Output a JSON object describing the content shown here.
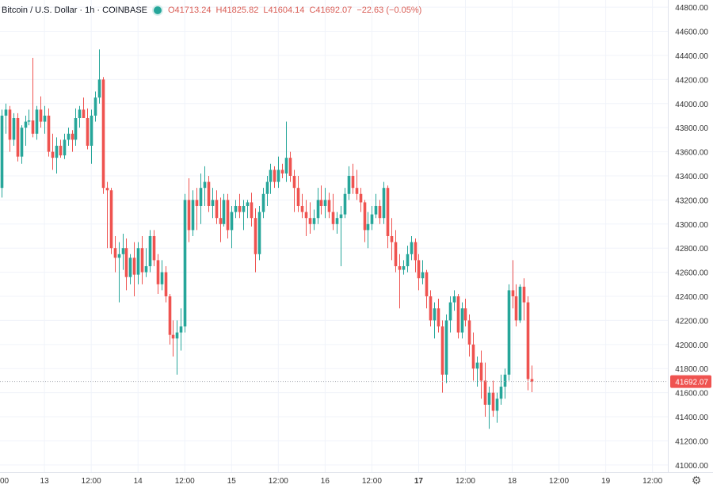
{
  "legend": {
    "symbol": "Bitcoin / U.S. Dollar · 1h · COINBASE",
    "open": "O41713.24",
    "high": "H41825.82",
    "low": "L41604.14",
    "close": "C41692.07",
    "change": "−22.63 (−0.05%)"
  },
  "settings_icon": "gear-icon",
  "colors": {
    "up": "#26a69a",
    "down": "#ef5350",
    "price_label_bg": "#ef5350",
    "grid": "#f0f3fa"
  },
  "chart_data": {
    "type": "candlestick",
    "title": "Bitcoin / U.S. Dollar · 1h · COINBASE",
    "last_price": 41692.07,
    "last_price_label": "41692.07",
    "ylim": [
      40940,
      44860
    ],
    "grid": true,
    "y_ticks": [
      41000,
      41200,
      41400,
      41600,
      41800,
      42000,
      42200,
      42400,
      42600,
      42800,
      43000,
      43200,
      43400,
      43600,
      43800,
      44000,
      44200,
      44400,
      44600,
      44800
    ],
    "y_tick_labels": [
      "41000.00",
      "41200.00",
      "41400.00",
      "41600.00",
      "41800.00",
      "42000.00",
      "42200.00",
      "42400.00",
      "42600.00",
      "42800.00",
      "43000.00",
      "43200.00",
      "43400.00",
      "43600.00",
      "43800.00",
      "44000.00",
      "44200.00",
      "44400.00",
      "44600.00",
      "44800.00"
    ],
    "x_ticks": [
      {
        "label": "00",
        "index": -1
      },
      {
        "label": "13",
        "index": 11
      },
      {
        "label": "12:00",
        "index": 23
      },
      {
        "label": "14",
        "index": 35
      },
      {
        "label": "12:00",
        "index": 47
      },
      {
        "label": "15",
        "index": 59
      },
      {
        "label": "12:00",
        "index": 71
      },
      {
        "label": "16",
        "index": 83
      },
      {
        "label": "12:00",
        "index": 95
      },
      {
        "label": "17",
        "index": 107
      },
      {
        "label": "12:00",
        "index": 119
      },
      {
        "label": "18",
        "index": 131
      },
      {
        "label": "12:00",
        "index": 143
      },
      {
        "label": "19",
        "index": 155
      },
      {
        "label": "12:00",
        "index": 167
      }
    ],
    "candles": [
      [
        43300,
        43950,
        43220,
        43900
      ],
      [
        43900,
        44000,
        43750,
        43950
      ],
      [
        43950,
        43980,
        43600,
        43700
      ],
      [
        43700,
        43920,
        43650,
        43880
      ],
      [
        43880,
        43920,
        43520,
        43560
      ],
      [
        43560,
        43820,
        43500,
        43800
      ],
      [
        43800,
        43900,
        43650,
        43850
      ],
      [
        43850,
        43950,
        43820,
        43860
      ],
      [
        43860,
        44380,
        43720,
        43750
      ],
      [
        43750,
        43980,
        43700,
        43950
      ],
      [
        43950,
        44060,
        43800,
        43850
      ],
      [
        43850,
        43980,
        43750,
        43900
      ],
      [
        43900,
        43960,
        43560,
        43600
      ],
      [
        43600,
        43750,
        43450,
        43550
      ],
      [
        43550,
        43720,
        43420,
        43650
      ],
      [
        43650,
        43700,
        43550,
        43570
      ],
      [
        43570,
        43750,
        43540,
        43700
      ],
      [
        43700,
        43800,
        43650,
        43750
      ],
      [
        43750,
        43780,
        43600,
        43700
      ],
      [
        43700,
        43960,
        43650,
        43880
      ],
      [
        43880,
        43980,
        43800,
        43950
      ],
      [
        43950,
        44050,
        43880,
        43880
      ],
      [
        43880,
        43960,
        43620,
        43650
      ],
      [
        43650,
        43950,
        43500,
        43900
      ],
      [
        43900,
        44100,
        43850,
        44050
      ],
      [
        44050,
        44450,
        44000,
        44200
      ],
      [
        44200,
        44220,
        43250,
        43300
      ],
      [
        43300,
        43350,
        42800,
        43280
      ],
      [
        43280,
        43300,
        42750,
        42800
      ],
      [
        42800,
        42900,
        42600,
        42720
      ],
      [
        42720,
        42850,
        42350,
        42750
      ],
      [
        42750,
        42920,
        42620,
        42800
      ],
      [
        42800,
        42880,
        42450,
        42560
      ],
      [
        42560,
        42750,
        42500,
        42720
      ],
      [
        42720,
        42850,
        42400,
        42580
      ],
      [
        42580,
        42850,
        42500,
        42800
      ],
      [
        42800,
        42900,
        42500,
        42600
      ],
      [
        42600,
        42800,
        42560,
        42650
      ],
      [
        42650,
        42950,
        42600,
        42900
      ],
      [
        42900,
        42950,
        42650,
        42700
      ],
      [
        42700,
        42750,
        42420,
        42500
      ],
      [
        42500,
        42700,
        42450,
        42600
      ],
      [
        42600,
        42650,
        42350,
        42400
      ],
      [
        42400,
        42420,
        42000,
        42080
      ],
      [
        42080,
        42200,
        41900,
        42050
      ],
      [
        42050,
        42200,
        41750,
        42100
      ],
      [
        42100,
        42300,
        41950,
        42150
      ],
      [
        42150,
        43250,
        42100,
        43200
      ],
      [
        43200,
        43380,
        42850,
        42950
      ],
      [
        42950,
        43280,
        42900,
        43200
      ],
      [
        43200,
        43300,
        42950,
        43150
      ],
      [
        43150,
        43420,
        43000,
        43300
      ],
      [
        43300,
        43480,
        43150,
        43350
      ],
      [
        43350,
        43400,
        43100,
        43150
      ],
      [
        43150,
        43300,
        43050,
        43200
      ],
      [
        43200,
        43280,
        43000,
        43050
      ],
      [
        43050,
        43220,
        42850,
        43000
      ],
      [
        43000,
        43250,
        42980,
        43200
      ],
      [
        43200,
        43250,
        42880,
        42950
      ],
      [
        42950,
        43150,
        42800,
        43100
      ],
      [
        43100,
        43200,
        43050,
        43150
      ],
      [
        43150,
        43250,
        43050,
        43100
      ],
      [
        43100,
        43200,
        42950,
        43150
      ],
      [
        43150,
        43200,
        43050,
        43180
      ],
      [
        43180,
        43260,
        42980,
        43050
      ],
      [
        43050,
        43130,
        42600,
        42750
      ],
      [
        42750,
        43150,
        42700,
        43100
      ],
      [
        43100,
        43300,
        43050,
        43250
      ],
      [
        43250,
        43400,
        43150,
        43350
      ],
      [
        43350,
        43500,
        43250,
        43450
      ],
      [
        43450,
        43480,
        43300,
        43350
      ],
      [
        43350,
        43560,
        43300,
        43450
      ],
      [
        43450,
        43500,
        43380,
        43420
      ],
      [
        43420,
        43850,
        43350,
        43550
      ],
      [
        43550,
        43600,
        43350,
        43400
      ],
      [
        43400,
        43450,
        43100,
        43300
      ],
      [
        43300,
        43400,
        43100,
        43150
      ],
      [
        43150,
        43250,
        43050,
        43100
      ],
      [
        43100,
        43200,
        42900,
        43050
      ],
      [
        43050,
        43180,
        42920,
        43000
      ],
      [
        43000,
        43120,
        42950,
        43050
      ],
      [
        43050,
        43300,
        43000,
        43200
      ],
      [
        43200,
        43320,
        43080,
        43150
      ],
      [
        43150,
        43300,
        43050,
        43200
      ],
      [
        43200,
        43260,
        43050,
        43100
      ],
      [
        43100,
        43250,
        42950,
        43000
      ],
      [
        43000,
        43100,
        42920,
        43050
      ],
      [
        43050,
        43150,
        42650,
        43080
      ],
      [
        43080,
        43300,
        43050,
        43250
      ],
      [
        43250,
        43480,
        43200,
        43400
      ],
      [
        43400,
        43500,
        43250,
        43300
      ],
      [
        43300,
        43450,
        43200,
        43250
      ],
      [
        43250,
        43300,
        43100,
        43180
      ],
      [
        43180,
        43200,
        42850,
        42950
      ],
      [
        42950,
        43100,
        42800,
        43000
      ],
      [
        43000,
        43150,
        42950,
        43080
      ],
      [
        43080,
        43250,
        43050,
        43150
      ],
      [
        43150,
        43200,
        43000,
        43050
      ],
      [
        43050,
        43350,
        43000,
        43300
      ],
      [
        43300,
        43320,
        42800,
        42900
      ],
      [
        42900,
        43050,
        42700,
        42850
      ],
      [
        42850,
        42950,
        42600,
        42650
      ],
      [
        42650,
        42750,
        42300,
        42620
      ],
      [
        42620,
        42700,
        42580,
        42650
      ],
      [
        42650,
        42820,
        42600,
        42750
      ],
      [
        42750,
        42900,
        42700,
        42850
      ],
      [
        42850,
        42880,
        42600,
        42700
      ],
      [
        42700,
        42750,
        42450,
        42550
      ],
      [
        42550,
        42700,
        42500,
        42600
      ],
      [
        42600,
        42620,
        42300,
        42400
      ],
      [
        42400,
        42450,
        42150,
        42200
      ],
      [
        42200,
        42350,
        42050,
        42300
      ],
      [
        42300,
        42380,
        42100,
        42150
      ],
      [
        42150,
        42200,
        41600,
        41750
      ],
      [
        41750,
        42250,
        41680,
        42200
      ],
      [
        42200,
        42400,
        42100,
        42350
      ],
      [
        42350,
        42450,
        42280,
        42400
      ],
      [
        42400,
        42420,
        42050,
        42100
      ],
      [
        42100,
        42350,
        42050,
        42300
      ],
      [
        42300,
        42380,
        42150,
        42200
      ],
      [
        42200,
        42250,
        41900,
        42000
      ],
      [
        42000,
        42100,
        41700,
        41800
      ],
      [
        41800,
        41900,
        41650,
        41850
      ],
      [
        41850,
        41950,
        41550,
        41700
      ],
      [
        41700,
        41850,
        41400,
        41500
      ],
      [
        41500,
        41650,
        41300,
        41600
      ],
      [
        41600,
        41700,
        41400,
        41450
      ],
      [
        41450,
        41600,
        41350,
        41550
      ],
      [
        41550,
        41750,
        41500,
        41650
      ],
      [
        41650,
        41800,
        41550,
        41750
      ],
      [
        41750,
        42500,
        41700,
        42450
      ],
      [
        42450,
        42700,
        42300,
        42400
      ],
      [
        42400,
        42500,
        42150,
        42200
      ],
      [
        42200,
        42500,
        42180,
        42480
      ],
      [
        42480,
        42550,
        42200,
        42350
      ],
      [
        42350,
        42400,
        41620,
        41713.24
      ],
      [
        41713.24,
        41825.82,
        41604.14,
        41692.07
      ]
    ]
  }
}
